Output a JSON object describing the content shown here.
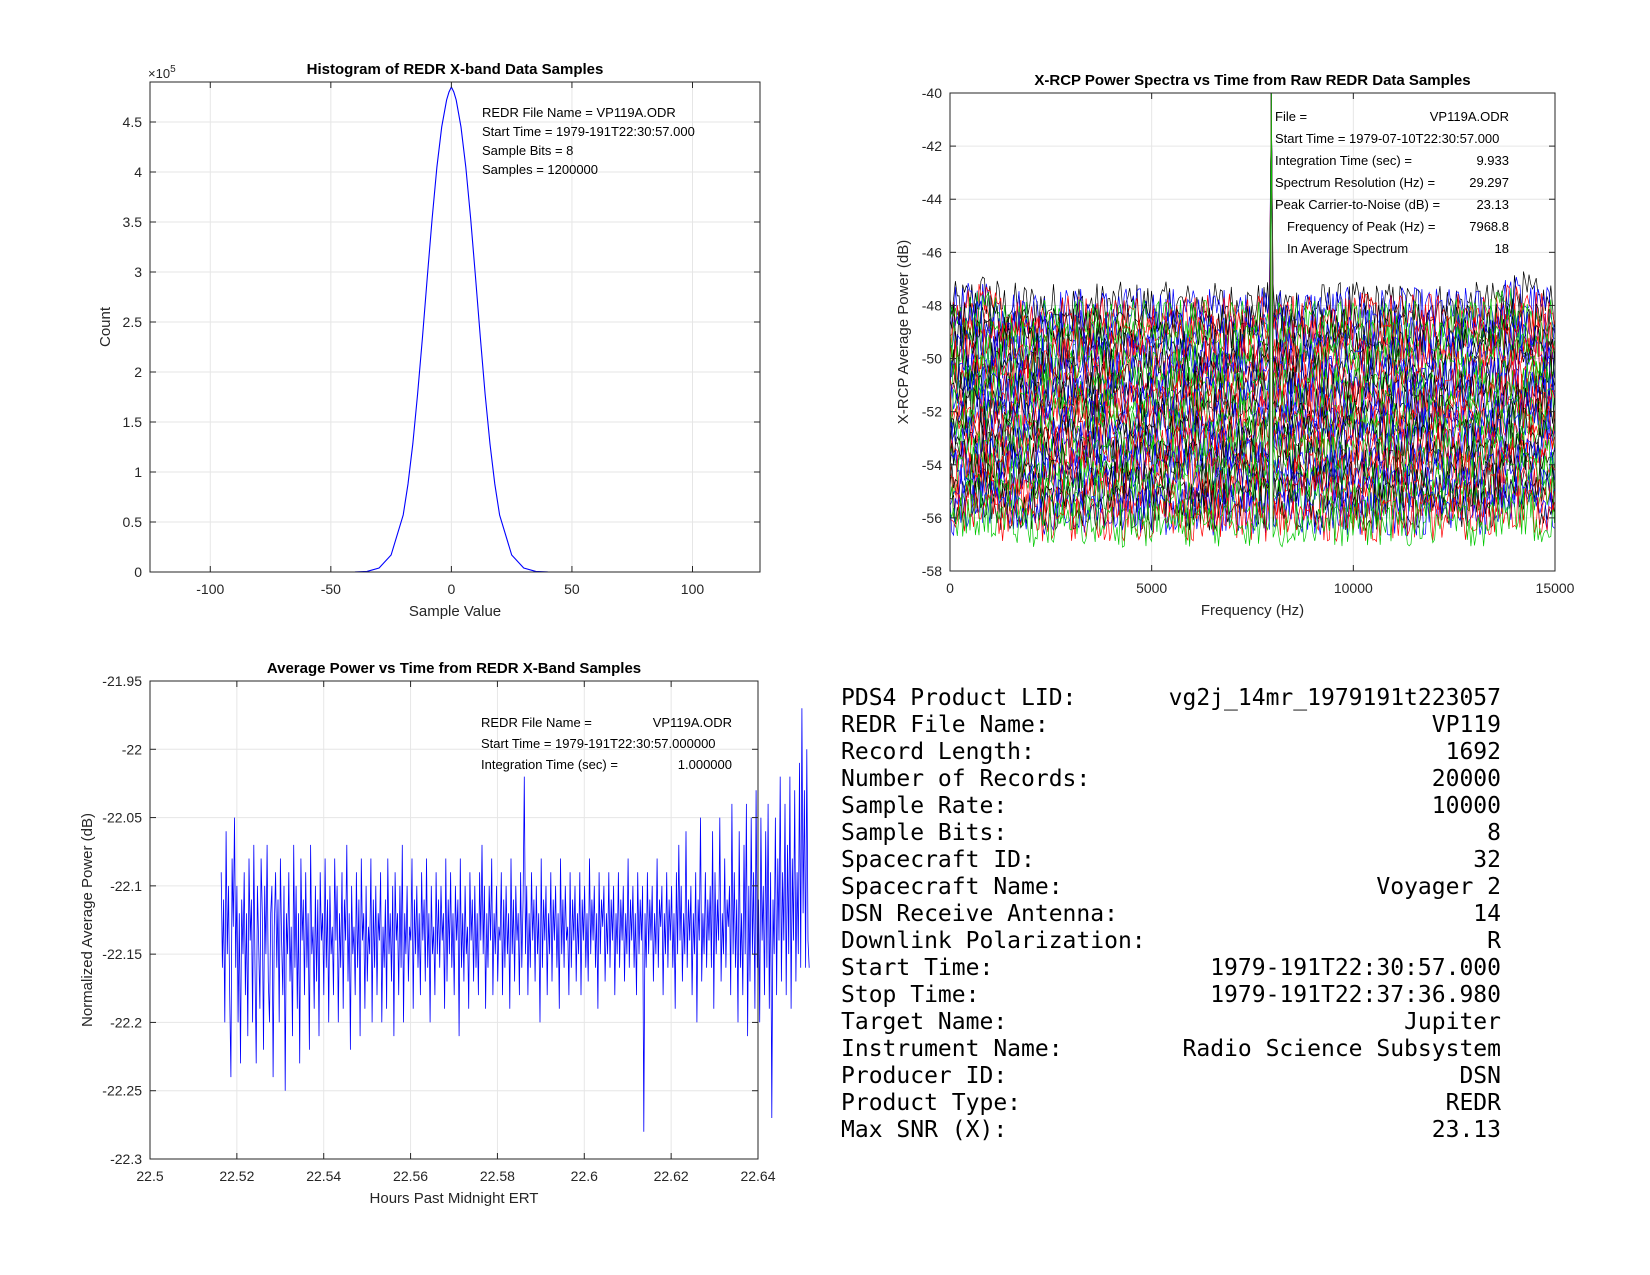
{
  "charts": [
    {
      "type": "line",
      "title": "Histogram of REDR X-band Data Samples",
      "xlabel": "Sample Value",
      "ylabel": "Count",
      "exponent_label": "×10",
      "exponent_power": "5",
      "xlim": [
        -125,
        128
      ],
      "ylim": [
        0,
        4.9
      ],
      "xticks": [
        -100,
        -50,
        0,
        50,
        100
      ],
      "yticks": [
        0,
        0.5,
        1,
        1.5,
        2,
        2.5,
        3,
        3.5,
        4,
        4.5
      ],
      "ytick_labels": [
        "0",
        "0.5",
        "1",
        "1.5",
        "2",
        "2.5",
        "3",
        "3.5",
        "4",
        "4.5"
      ],
      "grid": true,
      "annotations": [
        "REDR File Name = VP119A.ODR",
        "Start Time = 1979-191T22:30:57.000",
        "Sample Bits = 8",
        "Samples = 1200000"
      ],
      "series": [
        {
          "color": "#0000ff",
          "x": [
            -50,
            -45,
            -40,
            -35,
            -30,
            -25,
            -20,
            -18,
            -16,
            -14,
            -12,
            -10,
            -8,
            -6,
            -4,
            -2,
            -1,
            0,
            1,
            2,
            4,
            6,
            8,
            10,
            12,
            14,
            16,
            18,
            20,
            25,
            30,
            35,
            40,
            45,
            50
          ],
          "y": [
            0,
            0,
            0.001,
            0.006,
            0.04,
            0.17,
            0.57,
            0.88,
            1.28,
            1.78,
            2.35,
            2.95,
            3.53,
            4.05,
            4.45,
            4.72,
            4.8,
            4.85,
            4.8,
            4.72,
            4.45,
            4.05,
            3.53,
            2.95,
            2.35,
            1.78,
            1.28,
            0.88,
            0.57,
            0.17,
            0.04,
            0.006,
            0.001,
            0,
            0
          ]
        }
      ]
    },
    {
      "type": "line",
      "title": "X-RCP Power Spectra vs Time from Raw REDR Data Samples",
      "xlabel": "Frequency (Hz)",
      "ylabel": "X-RCP Average Power (dB)",
      "xlim": [
        0,
        15000
      ],
      "ylim": [
        -58,
        -40
      ],
      "xticks": [
        0,
        5000,
        10000,
        15000
      ],
      "yticks": [
        -58,
        -56,
        -54,
        -52,
        -50,
        -48,
        -46,
        -44,
        -42,
        -40
      ],
      "grid": true,
      "series_colors": [
        "#000000",
        "#0000ff",
        "#ff0000",
        "#00c800"
      ],
      "trace_count": 40,
      "trace_top_db": -48,
      "trace_bottom_db": -56.2,
      "trace_jitter_db": 0.9,
      "peak_frequency_hz": 7968.8,
      "peak_db": -40.6,
      "annotations": [
        [
          "File =",
          "VP119A.ODR"
        ],
        [
          "Start Time = 1979-07-10T22:30:57.000",
          ""
        ],
        [
          "Integration Time (sec) =",
          "9.933"
        ],
        [
          "Spectrum Resolution (Hz) =",
          "29.297"
        ],
        [
          "Peak Carrier-to-Noise (dB) =",
          "23.13"
        ],
        [
          "Frequency of Peak (Hz) =",
          "7968.8"
        ],
        [
          "In Average Spectrum",
          "18"
        ]
      ]
    },
    {
      "type": "line",
      "title": "Average Power vs Time from REDR X-Band Samples",
      "xlabel": "Hours Past Midnight ERT",
      "ylabel": "Normalized Average Power (dB)",
      "xlim": [
        22.5,
        22.64
      ],
      "ylim": [
        -22.3,
        -21.95
      ],
      "xticks": [
        22.5,
        22.52,
        22.54,
        22.56,
        22.58,
        22.6,
        22.62,
        22.64
      ],
      "xtick_labels": [
        "22.5",
        "22.52",
        "22.54",
        "22.56",
        "22.58",
        "22.6",
        "22.62",
        "22.64"
      ],
      "yticks": [
        -22.3,
        -22.25,
        -22.2,
        -22.15,
        -22.1,
        -22.05,
        -22,
        -21.95
      ],
      "ytick_labels": [
        "-22.3",
        "-22.25",
        "-22.2",
        "-22.15",
        "-22.1",
        "-22.05",
        "-22",
        "-21.95"
      ],
      "grid": true,
      "annotations": [
        [
          "REDR File Name =",
          "VP119A.ODR"
        ],
        [
          "Start Time = 1979-191T22:30:57.000000",
          ""
        ],
        [
          "Integration Time (sec) =",
          "1.000000"
        ]
      ],
      "series": [
        {
          "color": "#0000ff",
          "x_start": 22.5164,
          "x_step": 0.000278,
          "y": [
            -22.09,
            -22.16,
            -22.11,
            -22.2,
            -22.06,
            -22.15,
            -22.1,
            -22.18,
            -22.24,
            -22.08,
            -22.13,
            -22.05,
            -22.16,
            -22.1,
            -22.2,
            -22.12,
            -22.23,
            -22.11,
            -22.15,
            -22.09,
            -22.18,
            -22.12,
            -22.21,
            -22.08,
            -22.14,
            -22.11,
            -22.2,
            -22.07,
            -22.16,
            -22.23,
            -22.1,
            -22.14,
            -22.19,
            -22.08,
            -22.12,
            -22.22,
            -22.1,
            -22.15,
            -22.07,
            -22.17,
            -22.2,
            -22.12,
            -22.1,
            -22.24,
            -22.13,
            -22.09,
            -22.16,
            -22.11,
            -22.2,
            -22.08,
            -22.14,
            -22.18,
            -22.1,
            -22.25,
            -22.12,
            -22.15,
            -22.09,
            -22.17,
            -22.13,
            -22.21,
            -22.07,
            -22.16,
            -22.1,
            -22.19,
            -22.12,
            -22.23,
            -22.08,
            -22.14,
            -22.11,
            -22.18,
            -22.09,
            -22.16,
            -22.12,
            -22.22,
            -22.07,
            -22.15,
            -22.13,
            -22.19,
            -22.1,
            -22.17,
            -22.11,
            -22.21,
            -22.09,
            -22.14,
            -22.12,
            -22.18,
            -22.08,
            -22.16,
            -22.11,
            -22.2,
            -22.1,
            -22.15,
            -22.13,
            -22.18,
            -22.08,
            -22.14,
            -22.1,
            -22.2,
            -22.12,
            -22.16,
            -22.09,
            -22.19,
            -22.11,
            -22.14,
            -22.07,
            -22.17,
            -22.12,
            -22.22,
            -22.1,
            -22.15,
            -22.13,
            -22.18,
            -22.09,
            -22.16,
            -22.11,
            -22.21,
            -22.08,
            -22.14,
            -22.12,
            -22.19,
            -22.1,
            -22.17,
            -22.13,
            -22.15,
            -22.08,
            -22.2,
            -22.11,
            -22.16,
            -22.1,
            -22.18,
            -22.12,
            -22.14,
            -22.09,
            -22.2,
            -22.13,
            -22.16,
            -22.11,
            -22.19,
            -22.08,
            -22.15,
            -22.12,
            -22.17,
            -22.1,
            -22.21,
            -22.09,
            -22.14,
            -22.12,
            -22.18,
            -22.1,
            -22.16,
            -22.07,
            -22.2,
            -22.12,
            -22.15,
            -22.1,
            -22.17,
            -22.13,
            -22.14,
            -22.08,
            -22.19,
            -22.11,
            -22.15,
            -22.1,
            -22.16,
            -22.12,
            -22.18,
            -22.09,
            -22.14,
            -22.11,
            -22.17,
            -22.08,
            -22.16,
            -22.12,
            -22.2,
            -22.1,
            -22.15,
            -22.13,
            -22.18,
            -22.09,
            -22.15,
            -22.11,
            -22.16,
            -22.1,
            -22.14,
            -22.12,
            -22.19,
            -22.08,
            -22.17,
            -22.11,
            -22.15,
            -22.09,
            -22.16,
            -22.12,
            -22.18,
            -22.1,
            -22.14,
            -22.11,
            -22.21,
            -22.08,
            -22.16,
            -22.12,
            -22.17,
            -22.1,
            -22.15,
            -22.13,
            -22.19,
            -22.09,
            -22.14,
            -22.11,
            -22.17,
            -22.1,
            -22.16,
            -22.12,
            -22.18,
            -22.09,
            -22.14,
            -22.07,
            -22.15,
            -22.1,
            -22.19,
            -22.12,
            -22.16,
            -22.1,
            -22.14,
            -22.08,
            -22.18,
            -22.12,
            -22.15,
            -22.1,
            -22.17,
            -22.13,
            -22.14,
            -22.09,
            -22.18,
            -22.11,
            -22.16,
            -22.1,
            -22.15,
            -22.12,
            -22.19,
            -22.08,
            -22.15,
            -22.11,
            -22.17,
            -22.1,
            -22.14,
            -22.12,
            -22.18,
            -22.09,
            -22.16,
            -22.11,
            -22.02,
            -22.15,
            -22.1,
            -22.18,
            -22.12,
            -22.16,
            -22.09,
            -22.14,
            -22.11,
            -22.17,
            -22.1,
            -22.15,
            -22.12,
            -22.2,
            -22.08,
            -22.16,
            -22.11,
            -22.14,
            -22.1,
            -22.18,
            -22.12,
            -22.15,
            -22.09,
            -22.17,
            -22.11,
            -22.14,
            -22.1,
            -22.16,
            -22.12,
            -22.19,
            -22.08,
            -22.15,
            -22.11,
            -22.16,
            -22.1,
            -22.14,
            -22.13,
            -22.18,
            -22.09,
            -22.16,
            -22.11,
            -22.14,
            -22.1,
            -22.17,
            -22.12,
            -22.15,
            -22.09,
            -22.18,
            -22.11,
            -22.14,
            -22.1,
            -22.16,
            -22.12,
            -22.17,
            -22.08,
            -22.15,
            -22.11,
            -22.14,
            -22.1,
            -22.16,
            -22.12,
            -22.19,
            -22.09,
            -22.15,
            -22.11,
            -22.13,
            -22.1,
            -22.17,
            -22.12,
            -22.15,
            -22.09,
            -22.16,
            -22.11,
            -22.14,
            -22.1,
            -22.18,
            -22.12,
            -22.15,
            -22.09,
            -22.16,
            -22.11,
            -22.14,
            -22.1,
            -22.17,
            -22.12,
            -22.15,
            -22.08,
            -22.16,
            -22.11,
            -22.14,
            -22.1,
            -22.16,
            -22.12,
            -22.18,
            -22.09,
            -22.15,
            -22.11,
            -22.14,
            -22.1,
            -22.28,
            -22.12,
            -22.16,
            -22.09,
            -22.15,
            -22.11,
            -22.14,
            -22.1,
            -22.17,
            -22.12,
            -22.15,
            -22.08,
            -22.16,
            -22.11,
            -22.13,
            -22.1,
            -22.18,
            -22.12,
            -22.15,
            -22.09,
            -22.16,
            -22.11,
            -22.14,
            -22.1,
            -22.16,
            -22.12,
            -22.19,
            -22.09,
            -22.15,
            -22.07,
            -22.14,
            -22.1,
            -22.17,
            -22.12,
            -22.15,
            -22.06,
            -22.16,
            -22.11,
            -22.14,
            -22.1,
            -22.18,
            -22.12,
            -22.15,
            -22.09,
            -22.2,
            -22.11,
            -22.14,
            -22.05,
            -22.17,
            -22.12,
            -22.15,
            -22.09,
            -22.16,
            -22.11,
            -22.14,
            -22.1,
            -22.16,
            -22.06,
            -22.19,
            -22.09,
            -22.15,
            -22.11,
            -22.14,
            -22.05,
            -22.17,
            -22.12,
            -22.15,
            -22.08,
            -22.16,
            -22.11,
            -22.13,
            -22.1,
            -22.18,
            -22.04,
            -22.15,
            -22.09,
            -22.16,
            -22.11,
            -22.2,
            -22.06,
            -22.16,
            -22.12,
            -22.18,
            -22.07,
            -22.15,
            -22.04,
            -22.21,
            -22.1,
            -22.17,
            -22.05,
            -22.15,
            -22.09,
            -22.19,
            -22.03,
            -22.16,
            -22.11,
            -22.2,
            -22.05,
            -22.14,
            -22.1,
            -22.18,
            -22.06,
            -22.16,
            -22.04,
            -22.19,
            -22.09,
            -22.27,
            -22.11,
            -22.15,
            -22.05,
            -22.18,
            -22.08,
            -22.14,
            -22.02,
            -22.17,
            -22.09,
            -22.14,
            -22.04,
            -22.18,
            -22.07,
            -22.15,
            -22.02,
            -22.19,
            -22.08,
            -22.14,
            -22.03,
            -22.17,
            -22.09,
            -22.15,
            -22.01,
            -22.16,
            -21.97,
            -22.12,
            -22.03,
            -22.16,
            -22.0,
            -22.14,
            -22.16
          ]
        }
      ]
    }
  ],
  "info": {
    "rows": [
      [
        "PDS4 Product LID:",
        "vg2j_14mr_1979191t223057"
      ],
      [
        "REDR File Name:",
        "VP119"
      ],
      [
        "Record Length:",
        "1692"
      ],
      [
        "Number of Records:",
        "20000"
      ],
      [
        "Sample Rate:",
        "10000"
      ],
      [
        "Sample Bits:",
        "8"
      ],
      [
        "Spacecraft ID:",
        "32"
      ],
      [
        "Spacecraft Name:",
        "Voyager 2"
      ],
      [
        "DSN Receive Antenna:",
        "14"
      ],
      [
        "Downlink Polarization:",
        "R"
      ],
      [
        "Start Time:",
        "1979-191T22:30:57.000"
      ],
      [
        "Stop Time:",
        "1979-191T22:37:36.980"
      ],
      [
        "Target Name:",
        "Jupiter"
      ],
      [
        "Instrument Name:",
        "Radio Science Subsystem"
      ],
      [
        "Producer ID:",
        "DSN"
      ],
      [
        "Product Type:",
        "REDR"
      ],
      [
        "Max SNR (X):",
        "23.13"
      ]
    ]
  }
}
